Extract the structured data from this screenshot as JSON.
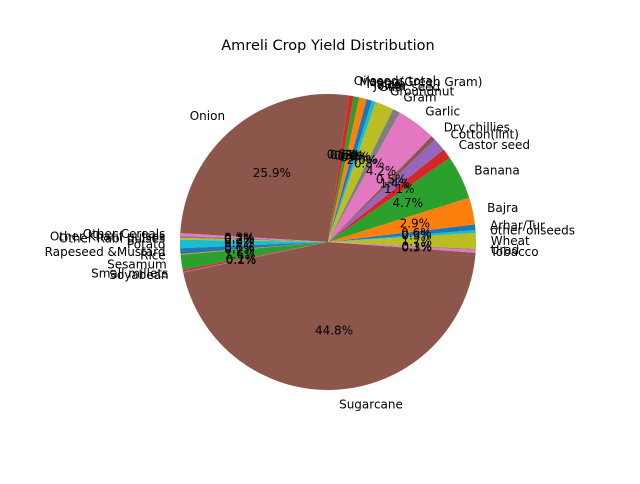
{
  "chart_data": {
    "type": "pie",
    "title": "Amreli Crop Yield Distribution",
    "start_angle_deg": 80,
    "direction": "counterclockwise",
    "slices": [
      {
        "label": "Oilseeds total",
        "pct": 0.5,
        "color": "#d62728"
      },
      {
        "label": "Onion",
        "pct": 25.9,
        "color": "#8c564b"
      },
      {
        "label": "Other Cereals",
        "pct": 0.3,
        "color": "#e377c2"
      },
      {
        "label": "Other Kharif pulses",
        "pct": 0.2,
        "color": "#7f7f7f"
      },
      {
        "label": "Other Rabi pulses",
        "pct": 0.2,
        "color": "#bcbd22"
      },
      {
        "label": "Potato",
        "pct": 0.9,
        "color": "#17becf"
      },
      {
        "label": "Rapeseed &Mustard",
        "pct": 0.6,
        "color": "#1f77b4"
      },
      {
        "label": "Rice",
        "pct": 0.1,
        "color": "#ff7f0e"
      },
      {
        "label": "Sesamum",
        "pct": 1.6,
        "color": "#2ca02c"
      },
      {
        "label": "Small millets",
        "pct": 0.2,
        "color": "#d62728"
      },
      {
        "label": "Soyabean",
        "pct": 0.1,
        "color": "#9467bd"
      },
      {
        "label": "Sugarcane",
        "pct": 44.8,
        "color": "#8c564b"
      },
      {
        "label": "Tobacco",
        "pct": 0.3,
        "color": "#e377c2"
      },
      {
        "label": "Urad",
        "pct": 0.1,
        "color": "#7f7f7f"
      },
      {
        "label": "Wheat",
        "pct": 1.7,
        "color": "#bcbd22"
      },
      {
        "label": "other oilseeds",
        "pct": 0.3,
        "color": "#17becf"
      },
      {
        "label": "Arhar/Tur",
        "pct": 0.6,
        "color": "#1f77b4"
      },
      {
        "label": "Bajra",
        "pct": 2.9,
        "color": "#ff7f0e"
      },
      {
        "label": "Banana",
        "pct": 4.7,
        "color": "#2ca02c"
      },
      {
        "label": "Castor seed",
        "pct": 1.1,
        "color": "#d62728"
      },
      {
        "label": "Cotton(lint)",
        "pct": 1.4,
        "color": "#9467bd"
      },
      {
        "label": "Dry chillies",
        "pct": 0.5,
        "color": "#8c564b"
      },
      {
        "label": "Garlic",
        "pct": 4.2,
        "color": "#e377c2"
      },
      {
        "label": "Gram",
        "pct": 0.8,
        "color": "#7f7f7f"
      },
      {
        "label": "Groundnut",
        "pct": 2.0,
        "color": "#bcbd22"
      },
      {
        "label": "Guar seed",
        "pct": 0.4,
        "color": "#17becf"
      },
      {
        "label": "Jowar",
        "pct": 0.6,
        "color": "#1f77b4"
      },
      {
        "label": "Maize",
        "pct": 0.8,
        "color": "#ff7f0e"
      },
      {
        "label": "Moong(Green Gram)",
        "pct": 0.6,
        "color": "#2ca02c"
      }
    ]
  }
}
